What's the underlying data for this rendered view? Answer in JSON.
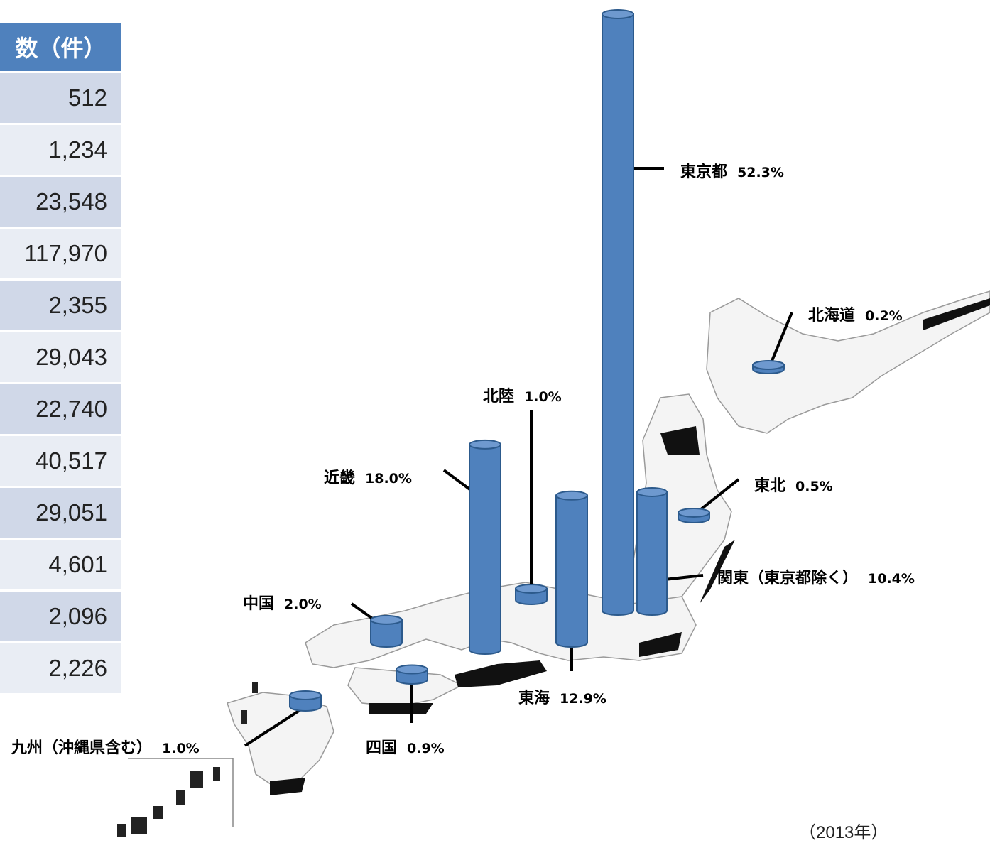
{
  "chart_data": {
    "type": "bar",
    "table_header": "数（件）",
    "table_values": [
      "512",
      "1,234",
      "23,548",
      "117,970",
      "2,355",
      "29,043",
      "22,740",
      "40,517",
      "29,051",
      "4,601",
      "2,096",
      "2,226"
    ],
    "series": [
      {
        "values": [
          {
            "region": "東京都",
            "pct": "52.3%",
            "value": 52.3
          },
          {
            "region": "北海道",
            "pct": "0.2%",
            "value": 0.2
          },
          {
            "region": "北陸",
            "pct": "1.0%",
            "value": 1.0
          },
          {
            "region": "近畿",
            "pct": "18.0%",
            "value": 18.0
          },
          {
            "region": "東北",
            "pct": "0.5%",
            "value": 0.5
          },
          {
            "region": "関東（東京都除く）",
            "pct": "10.4%",
            "value": 10.4
          },
          {
            "region": "中国",
            "pct": "2.0%",
            "value": 2.0
          },
          {
            "region": "東海",
            "pct": "12.9%",
            "value": 12.9
          },
          {
            "region": "九州（沖縄県含む）",
            "pct": "1.0%",
            "value": 1.0
          },
          {
            "region": "四国",
            "pct": "0.9%",
            "value": 0.9
          }
        ]
      }
    ],
    "year_note": "（2013年）",
    "colors": {
      "bar": "#4f81bd",
      "bar_edge": "#2c5a8c",
      "header": "#4f81bd"
    }
  }
}
